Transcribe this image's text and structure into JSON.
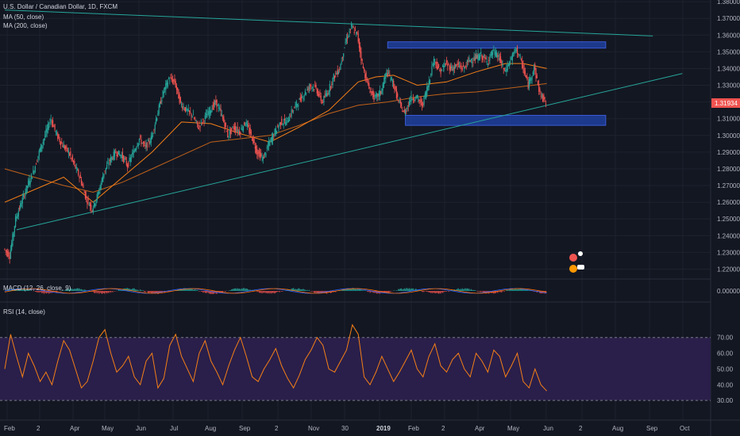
{
  "header": {
    "symbol_line": "U.S. Dollar / Canadian Dollar, 1D, FXCM",
    "ma1_label": "MA (50, close)",
    "ma2_label": "MA (200, close)",
    "macd_label": "MACD (12, 26, close, 9)",
    "rsi_label": "RSI (14, close)"
  },
  "colors": {
    "background": "#131722",
    "grid": "#1e222d",
    "bull": "#26a69a",
    "bear": "#ef5350",
    "ma50": "#f57f17",
    "ma200": "#c0611a",
    "trendline": "#26a69a",
    "zone": "#1e3f9e",
    "rsi_band": "#2a1f4a",
    "rsi_line": "#f57f17",
    "price_tag": "#ef5350"
  },
  "chart_data": {
    "type": "candlestick",
    "price_axis": {
      "ticks": [
        "1.38000",
        "1.37000",
        "1.36000",
        "1.35000",
        "1.34000",
        "1.33000",
        "1.32000",
        "1.31000",
        "1.30000",
        "1.29000",
        "1.28000",
        "1.27000",
        "1.26000",
        "1.25000",
        "1.24000",
        "1.23000",
        "1.22000"
      ],
      "range": [
        1.215,
        1.381
      ],
      "last_price": "1.31934"
    },
    "time_axis": [
      "Feb",
      "2",
      "Apr",
      "May",
      "Jun",
      "Jul",
      "Aug",
      "Sep",
      "2",
      "Nov",
      "30",
      "2019",
      "Feb",
      "2",
      "Apr",
      "May",
      "Jun",
      "2",
      "Aug",
      "Sep",
      "Oct"
    ],
    "close_path": [
      [
        0,
        1.2322
      ],
      [
        1,
        1.228
      ],
      [
        2,
        1.25
      ],
      [
        3,
        1.26
      ],
      [
        4,
        1.27
      ],
      [
        5,
        1.278
      ],
      [
        6,
        1.29
      ],
      [
        7,
        1.3
      ],
      [
        8,
        1.31
      ],
      [
        9,
        1.3
      ],
      [
        10,
        1.294
      ],
      [
        11,
        1.29
      ],
      [
        12,
        1.282
      ],
      [
        13,
        1.274
      ],
      [
        14,
        1.262
      ],
      [
        15,
        1.256
      ],
      [
        16,
        1.265
      ],
      [
        17,
        1.278
      ],
      [
        18,
        1.285
      ],
      [
        19,
        1.29
      ],
      [
        20,
        1.288
      ],
      [
        21,
        1.282
      ],
      [
        22,
        1.29
      ],
      [
        23,
        1.298
      ],
      [
        24,
        1.293
      ],
      [
        25,
        1.298
      ],
      [
        26,
        1.312
      ],
      [
        27,
        1.325
      ],
      [
        28,
        1.334
      ],
      [
        29,
        1.332
      ],
      [
        30,
        1.319
      ],
      [
        31,
        1.315
      ],
      [
        32,
        1.312
      ],
      [
        33,
        1.305
      ],
      [
        34,
        1.31
      ],
      [
        35,
        1.315
      ],
      [
        36,
        1.32
      ],
      [
        37,
        1.312
      ],
      [
        38,
        1.3
      ],
      [
        39,
        1.305
      ],
      [
        40,
        1.302
      ],
      [
        41,
        1.308
      ],
      [
        42,
        1.3
      ],
      [
        43,
        1.29
      ],
      [
        44,
        1.286
      ],
      [
        45,
        1.295
      ],
      [
        46,
        1.302
      ],
      [
        47,
        1.308
      ],
      [
        48,
        1.308
      ],
      [
        49,
        1.315
      ],
      [
        50,
        1.32
      ],
      [
        51,
        1.325
      ],
      [
        52,
        1.33
      ],
      [
        53,
        1.328
      ],
      [
        54,
        1.32
      ],
      [
        55,
        1.326
      ],
      [
        56,
        1.335
      ],
      [
        57,
        1.34
      ],
      [
        58,
        1.356
      ],
      [
        59,
        1.365
      ],
      [
        60,
        1.36
      ],
      [
        61,
        1.34
      ],
      [
        62,
        1.328
      ],
      [
        63,
        1.322
      ],
      [
        64,
        1.326
      ],
      [
        65,
        1.338
      ],
      [
        66,
        1.332
      ],
      [
        67,
        1.32
      ],
      [
        68,
        1.313
      ],
      [
        69,
        1.322
      ],
      [
        70,
        1.323
      ],
      [
        71,
        1.318
      ],
      [
        72,
        1.33
      ],
      [
        73,
        1.346
      ],
      [
        74,
        1.338
      ],
      [
        75,
        1.343
      ],
      [
        76,
        1.34
      ],
      [
        77,
        1.342
      ],
      [
        78,
        1.34
      ],
      [
        79,
        1.345
      ],
      [
        80,
        1.346
      ],
      [
        81,
        1.348
      ],
      [
        82,
        1.344
      ],
      [
        83,
        1.35
      ],
      [
        84,
        1.347
      ],
      [
        85,
        1.338
      ],
      [
        86,
        1.345
      ],
      [
        87,
        1.352
      ],
      [
        88,
        1.342
      ],
      [
        89,
        1.33
      ],
      [
        90,
        1.341
      ],
      [
        91,
        1.325
      ],
      [
        92,
        1.3193
      ]
    ],
    "ma50": [
      [
        0,
        1.26
      ],
      [
        10,
        1.275
      ],
      [
        15,
        1.26
      ],
      [
        20,
        1.275
      ],
      [
        25,
        1.29
      ],
      [
        30,
        1.308
      ],
      [
        35,
        1.307
      ],
      [
        40,
        1.301
      ],
      [
        45,
        1.296
      ],
      [
        50,
        1.305
      ],
      [
        55,
        1.315
      ],
      [
        60,
        1.332
      ],
      [
        63,
        1.335
      ],
      [
        66,
        1.336
      ],
      [
        70,
        1.33
      ],
      [
        75,
        1.332
      ],
      [
        80,
        1.338
      ],
      [
        85,
        1.343
      ],
      [
        88,
        1.343
      ],
      [
        92,
        1.34
      ]
    ],
    "ma200": [
      [
        0,
        1.28
      ],
      [
        10,
        1.27
      ],
      [
        15,
        1.266
      ],
      [
        20,
        1.272
      ],
      [
        25,
        1.28
      ],
      [
        30,
        1.288
      ],
      [
        35,
        1.296
      ],
      [
        40,
        1.298
      ],
      [
        45,
        1.3
      ],
      [
        50,
        1.306
      ],
      [
        55,
        1.313
      ],
      [
        60,
        1.318
      ],
      [
        65,
        1.32
      ],
      [
        70,
        1.323
      ],
      [
        75,
        1.325
      ],
      [
        80,
        1.326
      ],
      [
        85,
        1.328
      ],
      [
        92,
        1.331
      ]
    ],
    "trendlines": [
      {
        "from": [
          2,
          1.2435
        ],
        "to": [
          115,
          1.337
        ]
      },
      {
        "from": [
          0,
          1.375
        ],
        "to": [
          110,
          1.3595
        ]
      }
    ],
    "zones": [
      {
        "x_from": 65,
        "x_to": 102,
        "y_low": 1.3535,
        "y_high": 1.356
      },
      {
        "x_from": 68,
        "x_to": 102,
        "y_low": 1.306,
        "y_high": 1.312
      }
    ],
    "rsi": {
      "ticks": [
        "70.00",
        "60.00",
        "50.00",
        "40.00",
        "30.00"
      ],
      "levels": [
        70,
        30
      ],
      "values": [
        50,
        72,
        58,
        45,
        60,
        52,
        42,
        48,
        40,
        55,
        68,
        62,
        50,
        38,
        42,
        55,
        70,
        75,
        60,
        48,
        52,
        58,
        45,
        40,
        55,
        60,
        38,
        44,
        65,
        72,
        58,
        50,
        42,
        60,
        68,
        55,
        48,
        40,
        52,
        62,
        70,
        58,
        45,
        42,
        50,
        56,
        63,
        52,
        44,
        38,
        46,
        56,
        62,
        70,
        65,
        50,
        48,
        55,
        62,
        78,
        72,
        45,
        40,
        48,
        58,
        50,
        42,
        48,
        55,
        62,
        50,
        45,
        58,
        66,
        52,
        48,
        56,
        60,
        50,
        45,
        60,
        55,
        48,
        62,
        58,
        45,
        52,
        60,
        42,
        38,
        50,
        40,
        36
      ]
    },
    "macd": {
      "ticks": [
        "0.00000"
      ]
    }
  }
}
